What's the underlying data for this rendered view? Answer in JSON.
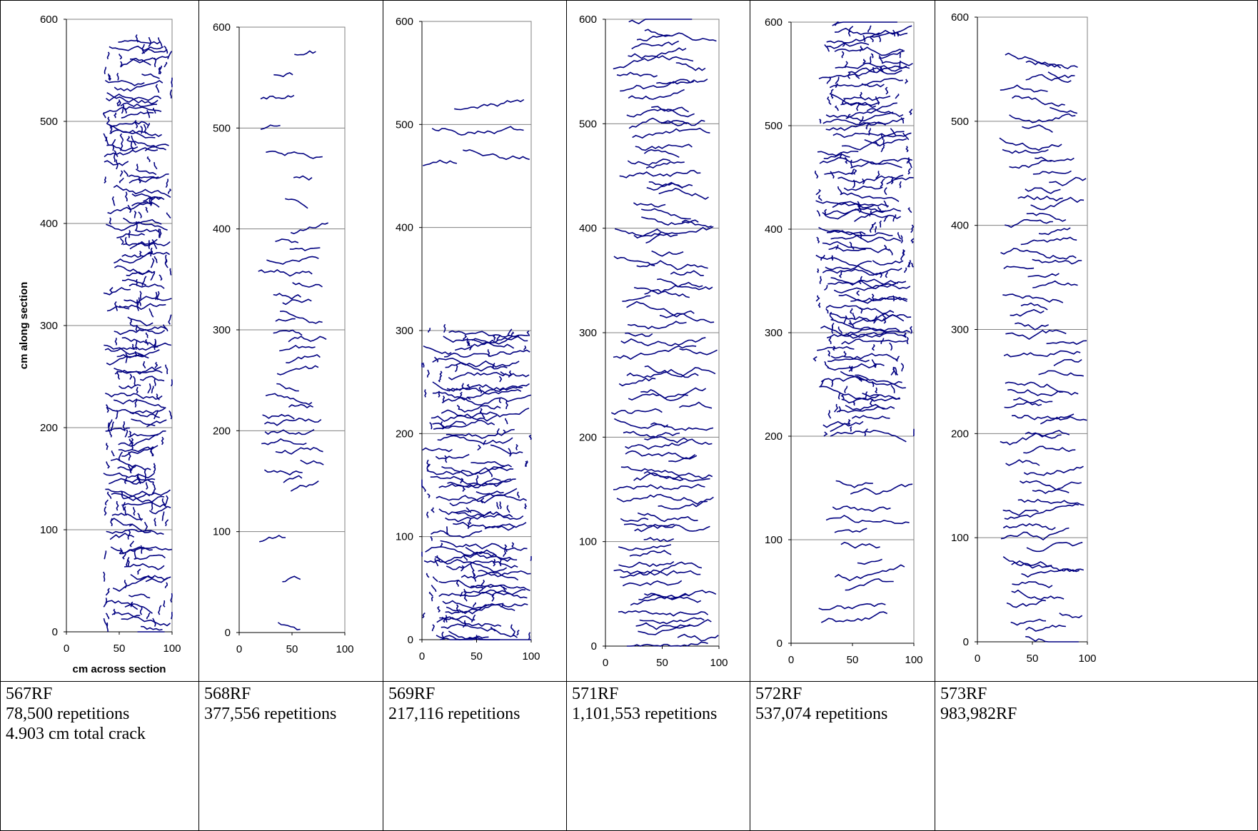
{
  "chart_data": [
    {
      "type": "scatter",
      "panel_id": "567RF",
      "caption": [
        "567RF",
        "78,500 repetitions",
        "4.903 cm total crack"
      ],
      "xlabel": "cm across section",
      "ylabel": "cm along section",
      "xlim": [
        0,
        100
      ],
      "ylim": [
        0,
        600
      ],
      "xticks": [
        "0",
        "50",
        "100"
      ],
      "yticks": [
        "0",
        "100",
        "200",
        "300",
        "400",
        "500",
        "600"
      ],
      "gridlines_y": [
        100,
        200,
        300,
        400,
        500
      ],
      "line_color": "#000080",
      "crack_band": [
        35,
        100
      ],
      "crack_pattern": "dense network of transverse and interconnected cracks along full length"
    },
    {
      "type": "scatter",
      "panel_id": "568RF",
      "caption": [
        "568RF",
        "377,556 repetitions"
      ],
      "xlim": [
        0,
        100
      ],
      "ylim": [
        0,
        600
      ],
      "xticks": [
        "0",
        "50",
        "100"
      ],
      "yticks": [
        "0",
        "100",
        "200",
        "300",
        "400",
        "500",
        "600"
      ],
      "gridlines_y": [
        100,
        200,
        300,
        400,
        500
      ],
      "line_color": "#000080",
      "crack_band": [
        18,
        85
      ],
      "crack_pattern": "sparse transverse cracks, concentrated between 150 and 400 cm"
    },
    {
      "type": "scatter",
      "panel_id": "569RF",
      "caption": [
        "569RF",
        "217,116 repetitions"
      ],
      "xlim": [
        0,
        100
      ],
      "ylim": [
        0,
        600
      ],
      "xticks": [
        "0",
        "50",
        "100"
      ],
      "yticks": [
        "0",
        "100",
        "200",
        "300",
        "400",
        "500",
        "600"
      ],
      "gridlines_y": [
        100,
        200,
        300,
        400,
        500
      ],
      "line_color": "#000080",
      "crack_band": [
        0,
        100
      ],
      "crack_pattern": "block cracking below 300 cm, isolated cracks near 500 cm"
    },
    {
      "type": "scatter",
      "panel_id": "571RF",
      "caption": [
        "571RF",
        "1,101,553 repetitions"
      ],
      "xlim": [
        0,
        100
      ],
      "ylim": [
        0,
        600
      ],
      "xticks": [
        "0",
        "50",
        "100"
      ],
      "yticks": [
        "0",
        "100",
        "200",
        "300",
        "400",
        "500",
        "600"
      ],
      "gridlines_y": [
        100,
        200,
        300,
        400,
        500
      ],
      "line_color": "#000080",
      "crack_band": [
        5,
        100
      ],
      "crack_pattern": "many closely spaced transverse cracks along full length"
    },
    {
      "type": "scatter",
      "panel_id": "572RF",
      "caption": [
        "572RF",
        "537,074 repetitions"
      ],
      "xlim": [
        0,
        100
      ],
      "ylim": [
        0,
        600
      ],
      "xticks": [
        "0",
        "50",
        "100"
      ],
      "yticks": [
        "0",
        "100",
        "200",
        "300",
        "400",
        "500",
        "600"
      ],
      "gridlines_y": [
        100,
        200,
        300,
        400,
        500
      ],
      "line_color": "#000080",
      "crack_band": [
        20,
        100
      ],
      "crack_pattern": "dense block cracking above 250 cm, scattered cracks 20-160 cm"
    },
    {
      "type": "scatter",
      "panel_id": "573RF",
      "caption": [
        "573RF",
        "983,982RF"
      ],
      "xlim": [
        0,
        100
      ],
      "ylim": [
        0,
        600
      ],
      "xticks": [
        "0",
        "50",
        "100"
      ],
      "yticks": [
        "0",
        "100",
        "200",
        "300",
        "400",
        "500",
        "600"
      ],
      "gridlines_y": [
        100,
        200,
        300,
        400,
        500
      ],
      "line_color": "#000080",
      "crack_band": [
        18,
        100
      ],
      "crack_pattern": "regular transverse cracks along full length"
    }
  ]
}
